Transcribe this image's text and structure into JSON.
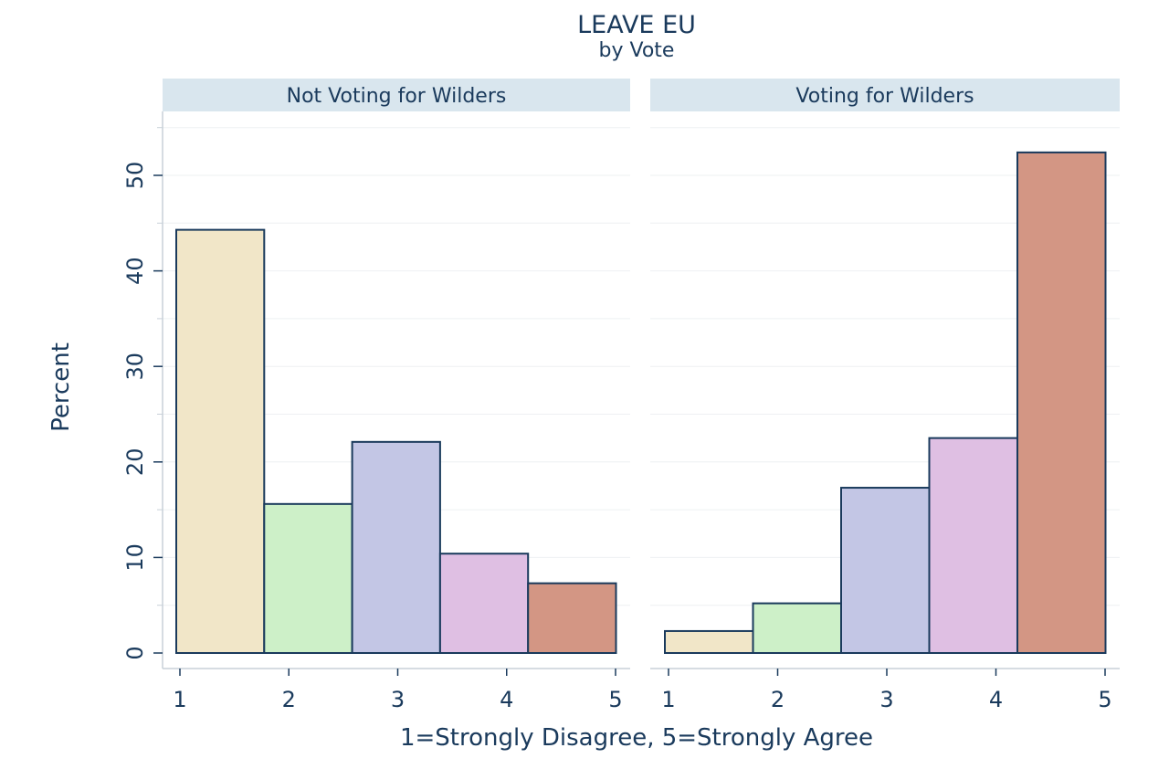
{
  "chart_data": {
    "type": "bar",
    "title": "LEAVE EU",
    "subtitle": "by Vote",
    "xlabel": "1=Strongly Disagree, 5=Strongly Agree",
    "ylabel": "Percent",
    "ylim": [
      0,
      55
    ],
    "yticks": [
      0,
      10,
      20,
      30,
      40,
      50
    ],
    "xticks": [
      "1",
      "2",
      "3",
      "4",
      "5"
    ],
    "grid": true,
    "bar_colors": [
      "#f1e6c8",
      "#cdf0c8",
      "#c3c6e5",
      "#dfbfe3",
      "#d39684"
    ],
    "edge_color": "#1a3a5c",
    "strip_color": "#d9e6ee",
    "panels": [
      {
        "label": "Not Voting for Wilders",
        "values": [
          44.3,
          15.6,
          22.1,
          10.4,
          7.3
        ]
      },
      {
        "label": "Voting for Wilders",
        "values": [
          2.3,
          5.2,
          17.3,
          22.5,
          52.4
        ]
      }
    ]
  }
}
